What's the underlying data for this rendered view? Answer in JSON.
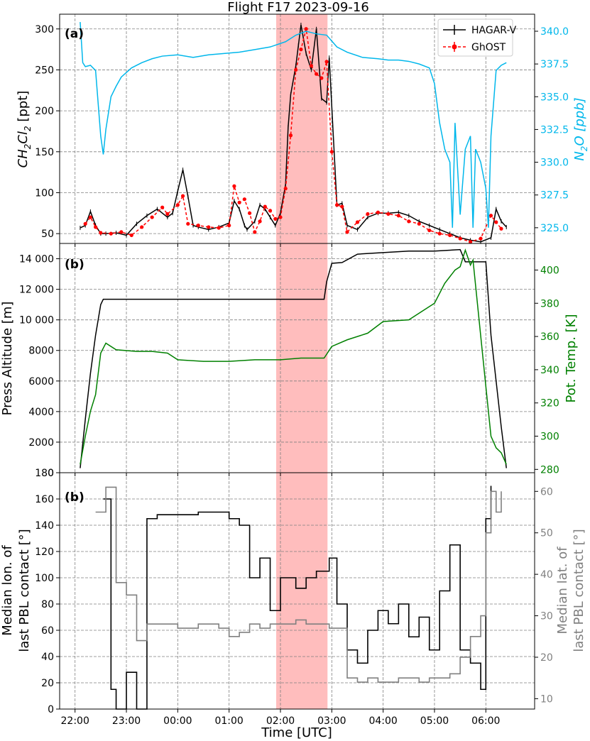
{
  "title": "Flight F17 2023-09-16",
  "colors": {
    "hagar": "#000000",
    "ghost": "#ff0000",
    "n2o": "#00b7eb",
    "theta": "#008000",
    "lon": "#000000",
    "lat": "#808080",
    "highlight": "#ff9999"
  },
  "x_axis": {
    "label": "Time [UTC]",
    "ticks": [
      "22:00",
      "23:00",
      "00:00",
      "01:00",
      "02:00",
      "03:00",
      "04:00",
      "05:00",
      "06:00"
    ],
    "range_hours": [
      21.7,
      30.95
    ]
  },
  "highlight_span": {
    "start": "01:55",
    "end": "02:55"
  },
  "chart_data": [
    {
      "panel": "(a)",
      "type": "line",
      "grid": true,
      "legend": "top-right",
      "ylabel": "CH2Cl2 [ppt]",
      "ylabel_base": "CH",
      "ylabel_sub1": "2",
      "ylabel_mid": "Cl",
      "ylabel_sub2": "2",
      "ylabel_rest": " [ppt]",
      "ylim": [
        38,
        318
      ],
      "yticks": [
        "50",
        "100",
        "150",
        "200",
        "250",
        "300"
      ],
      "y2label_base": "N",
      "y2label_sub": "2",
      "y2label_rest": "O [ppb]",
      "y2lim": [
        323.8,
        341.3
      ],
      "y2ticks": [
        "325.0",
        "327.5",
        "330.0",
        "332.5",
        "335.0",
        "337.5",
        "340.0"
      ],
      "series": [
        {
          "name": "HAGAR-V",
          "axis": "left",
          "x": [
            22.1,
            22.2,
            22.3,
            22.4,
            22.5,
            22.6,
            22.8,
            23.0,
            23.2,
            23.4,
            23.6,
            23.8,
            23.9,
            24.0,
            24.1,
            24.2,
            24.3,
            24.4,
            24.6,
            24.8,
            25.0,
            25.1,
            25.2,
            25.3,
            25.35,
            25.5,
            25.6,
            25.7,
            25.8,
            25.9,
            26.0,
            26.1,
            26.15,
            26.2,
            26.3,
            26.35,
            26.4,
            26.5,
            26.6,
            26.7,
            26.8,
            26.9,
            26.95,
            27.1,
            27.2,
            27.3,
            27.5,
            27.7,
            27.9,
            28.1,
            28.3,
            28.5,
            28.7,
            28.9,
            29.1,
            29.3,
            29.5,
            29.7,
            29.9,
            30.1,
            30.2,
            30.3,
            30.4
          ],
          "y": [
            57,
            60,
            77,
            60,
            50,
            50,
            51,
            48,
            62,
            72,
            80,
            70,
            75,
            102,
            128,
            95,
            60,
            58,
            55,
            58,
            63,
            90,
            80,
            60,
            55,
            65,
            85,
            80,
            70,
            60,
            75,
            110,
            180,
            220,
            255,
            280,
            305,
            270,
            250,
            300,
            215,
            210,
            265,
            85,
            87,
            60,
            55,
            70,
            75,
            75,
            76,
            72,
            65,
            60,
            55,
            50,
            45,
            42,
            40,
            45,
            80,
            65,
            58
          ]
        },
        {
          "name": "GhOST",
          "axis": "left",
          "x": [
            22.2,
            22.3,
            22.4,
            22.5,
            22.7,
            22.9,
            23.1,
            23.3,
            23.5,
            23.7,
            23.8,
            24.0,
            24.1,
            24.2,
            24.4,
            24.6,
            24.8,
            25.0,
            25.1,
            25.2,
            25.3,
            25.4,
            25.5,
            25.6,
            25.7,
            25.8,
            25.9,
            26.0,
            26.1,
            26.2,
            26.3,
            26.4,
            26.5,
            26.6,
            26.7,
            26.8,
            26.9,
            27.0,
            27.1,
            27.2,
            27.3,
            27.5,
            27.7,
            27.9,
            28.1,
            28.3,
            28.5,
            28.7,
            28.9,
            29.1,
            29.3,
            29.5,
            29.7,
            29.9,
            30.1,
            30.2,
            30.3
          ],
          "y": [
            62,
            70,
            58,
            51,
            50,
            52,
            48,
            58,
            70,
            82,
            74,
            85,
            96,
            62,
            60,
            58,
            57,
            60,
            108,
            88,
            92,
            75,
            52,
            65,
            83,
            78,
            68,
            70,
            105,
            170,
            250,
            275,
            300,
            255,
            245,
            240,
            260,
            150,
            85,
            83,
            52,
            64,
            74,
            76,
            74,
            72,
            65,
            62,
            54,
            50,
            48,
            44,
            40,
            44,
            72,
            64,
            56
          ]
        },
        {
          "name": "N2O",
          "axis": "right",
          "x": [
            22.1,
            22.15,
            22.2,
            22.3,
            22.4,
            22.5,
            22.55,
            22.6,
            22.7,
            22.8,
            22.9,
            23.1,
            23.3,
            23.5,
            23.7,
            24.0,
            24.3,
            24.6,
            24.9,
            25.2,
            25.5,
            25.8,
            26.1,
            26.3,
            26.5,
            26.7,
            26.9,
            27.1,
            27.3,
            27.6,
            27.9,
            28.1,
            28.3,
            28.5,
            28.7,
            28.9,
            29.0,
            29.1,
            29.2,
            29.3,
            29.35,
            29.4,
            29.5,
            29.6,
            29.7,
            29.75,
            29.8,
            29.9,
            30.0,
            30.05,
            30.1,
            30.2,
            30.3,
            30.4
          ],
          "y": [
            340.7,
            337.6,
            337.3,
            337.4,
            337.0,
            332.0,
            330.6,
            332.5,
            335.0,
            335.8,
            336.5,
            337.2,
            337.6,
            337.9,
            338.1,
            338.2,
            338.0,
            338.2,
            338.3,
            338.4,
            338.6,
            338.8,
            339.2,
            339.7,
            340.0,
            339.8,
            339.7,
            338.8,
            338.4,
            338.0,
            337.9,
            337.8,
            337.8,
            337.7,
            337.5,
            337.2,
            336.0,
            333.0,
            331.0,
            330.0,
            325.0,
            333.0,
            326.0,
            331.0,
            332.0,
            325.0,
            331.0,
            330.0,
            328.0,
            325.0,
            332.0,
            337.0,
            337.4,
            337.6
          ]
        }
      ]
    },
    {
      "panel": "(b)",
      "type": "line",
      "grid": true,
      "ylabel": "Press Altitude [m]",
      "ylim": [
        0,
        15000
      ],
      "yticks": [
        "0",
        "2000",
        "4000",
        "6000",
        "8000",
        "10 000",
        "12 000",
        "14 000"
      ],
      "y2label": "Pot. Temp. [K]",
      "y2lim": [
        278,
        416
      ],
      "y2ticks": [
        "280",
        "300",
        "320",
        "340",
        "360",
        "380",
        "400"
      ],
      "series": [
        {
          "name": "Press Altitude",
          "axis": "left",
          "x": [
            22.1,
            22.2,
            22.3,
            22.4,
            22.5,
            22.55,
            22.7,
            23.0,
            24.0,
            25.0,
            26.0,
            26.5,
            26.85,
            26.9,
            27.0,
            27.2,
            27.5,
            28.0,
            28.5,
            29.0,
            29.5,
            29.6,
            29.7,
            30.0,
            30.1,
            30.2,
            30.3,
            30.4
          ],
          "y": [
            300,
            3500,
            6500,
            9000,
            11000,
            11350,
            11350,
            11350,
            11350,
            11350,
            11350,
            11350,
            11350,
            12500,
            13700,
            13750,
            14300,
            14400,
            14500,
            14500,
            14600,
            13800,
            13800,
            13800,
            9000,
            6000,
            3000,
            300
          ]
        },
        {
          "name": "Pot. Temp.",
          "axis": "right",
          "x": [
            22.1,
            22.2,
            22.3,
            22.4,
            22.5,
            22.6,
            22.8,
            23.2,
            23.5,
            23.8,
            24.0,
            24.5,
            25.0,
            25.5,
            26.0,
            26.4,
            26.85,
            27.0,
            27.3,
            27.7,
            28.0,
            28.5,
            29.0,
            29.2,
            29.4,
            29.5,
            29.6,
            29.7,
            29.75,
            30.0,
            30.1,
            30.2,
            30.3,
            30.4
          ],
          "y": [
            283,
            300,
            315,
            325,
            350,
            356,
            352,
            351,
            351,
            350,
            346,
            345,
            345,
            346,
            346,
            347,
            347,
            354,
            358,
            362,
            369,
            370,
            380,
            392,
            400,
            402,
            412,
            403,
            406,
            330,
            300,
            293,
            290,
            283
          ]
        }
      ]
    },
    {
      "panel": "(b)",
      "type": "line",
      "grid": true,
      "ylabel_line1": "Median lon. of",
      "ylabel_line2": "last PBL contact [°]",
      "ylim": [
        0,
        180
      ],
      "yticks": [
        "0",
        "20",
        "40",
        "60",
        "80",
        "100",
        "120",
        "140",
        "160",
        "180"
      ],
      "y2label_line1": "Median lat. of",
      "y2label_line2": "last PBL contact [°]",
      "y2lim": [
        7.5,
        64.5
      ],
      "y2ticks": [
        "10",
        "20",
        "30",
        "40",
        "50",
        "60"
      ],
      "series": [
        {
          "name": "Median lon.",
          "axis": "left",
          "x": [
            22.55,
            22.7,
            22.8,
            23.0,
            23.2,
            23.4,
            23.6,
            24.0,
            24.4,
            24.8,
            25.0,
            25.2,
            25.4,
            25.6,
            25.8,
            26.0,
            26.3,
            26.5,
            26.7,
            26.95,
            27.1,
            27.3,
            27.5,
            27.7,
            27.9,
            28.1,
            28.3,
            28.5,
            28.7,
            28.9,
            29.1,
            29.3,
            29.5,
            29.7,
            29.9,
            30.0,
            30.1
          ],
          "y": [
            160,
            15,
            0,
            28,
            0,
            145,
            148,
            148,
            150,
            150,
            145,
            140,
            100,
            115,
            75,
            100,
            92,
            100,
            105,
            115,
            80,
            45,
            35,
            60,
            75,
            65,
            80,
            55,
            70,
            45,
            90,
            125,
            45,
            35,
            15,
            145,
            170
          ]
        },
        {
          "name": "Median lat.",
          "axis": "right",
          "x": [
            22.4,
            22.6,
            22.8,
            23.0,
            23.2,
            23.4,
            23.6,
            24.0,
            24.4,
            24.8,
            25.0,
            25.2,
            25.4,
            25.6,
            25.8,
            26.0,
            26.3,
            26.5,
            26.7,
            26.95,
            27.1,
            27.3,
            27.5,
            27.7,
            27.9,
            28.1,
            28.3,
            28.5,
            28.7,
            28.9,
            29.1,
            29.3,
            29.5,
            29.7,
            29.9,
            30.0,
            30.1,
            30.2,
            30.3
          ],
          "y": [
            55,
            61,
            38,
            35,
            24,
            28,
            28,
            27,
            28,
            27,
            25,
            26,
            28,
            27,
            28,
            28,
            29,
            28,
            28,
            27,
            27,
            15,
            14,
            15,
            14,
            14,
            15,
            15,
            14,
            15,
            15,
            16,
            20,
            25,
            30,
            50,
            60,
            55,
            60
          ]
        }
      ]
    }
  ],
  "legend": {
    "hagar_label": "HAGAR-V",
    "ghost_label": "GhOST"
  },
  "panel_b_label": "(b)",
  "panel_c_label": "(b)"
}
